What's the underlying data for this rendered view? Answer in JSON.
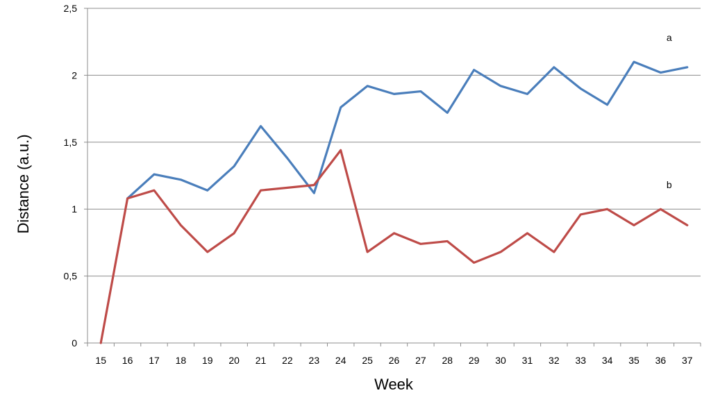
{
  "chart_data": {
    "type": "line",
    "xlabel": "Week",
    "ylabel": "Distance  (a.u.)",
    "ylim": [
      0,
      2.5
    ],
    "y_ticks": [
      "0",
      "0,5",
      "1",
      "1,5",
      "2",
      "2,5"
    ],
    "x": [
      15,
      16,
      17,
      18,
      19,
      20,
      21,
      22,
      23,
      24,
      25,
      26,
      27,
      28,
      29,
      30,
      31,
      32,
      33,
      34,
      35,
      36,
      37
    ],
    "grid": "horizontal",
    "series": [
      {
        "name": "a",
        "color": "#4a7ebb",
        "values": [
          null,
          1.08,
          1.26,
          1.22,
          1.14,
          1.32,
          1.62,
          1.38,
          1.12,
          1.76,
          1.92,
          1.86,
          1.88,
          1.72,
          2.04,
          1.92,
          1.86,
          2.06,
          1.9,
          1.78,
          2.1,
          2.02,
          2.06
        ]
      },
      {
        "name": "b",
        "color": "#be4b48",
        "values": [
          0,
          1.08,
          1.14,
          0.88,
          0.68,
          0.82,
          1.14,
          1.16,
          1.18,
          1.44,
          0.68,
          0.82,
          0.74,
          0.76,
          0.6,
          0.68,
          0.82,
          0.68,
          0.96,
          1.0,
          0.88,
          1.0,
          0.88
        ]
      }
    ]
  }
}
